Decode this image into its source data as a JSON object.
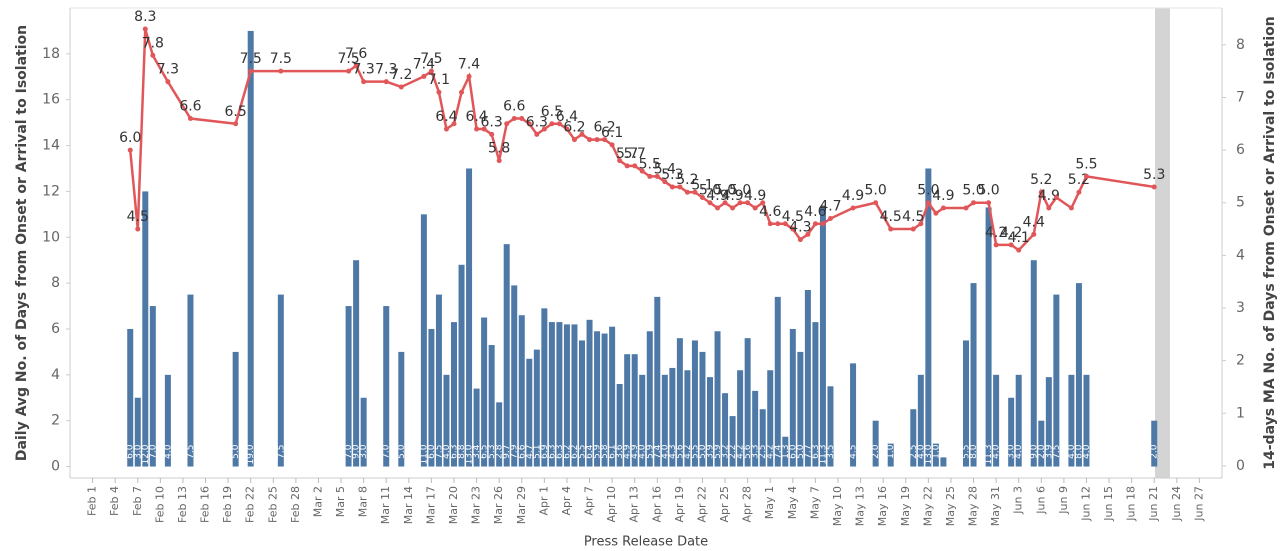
{
  "chart_data": {
    "type": "bar",
    "x_label": "Press Release Date",
    "y_label": "Daily Avg No. of Days from Onset or Arrival to Isolation",
    "y2_label": "14-days MA No. of Days from Onset or Arrival to Isolation",
    "x": [
      "Feb 6",
      "Feb 7",
      "Feb 8",
      "Feb 9",
      "Feb 11",
      "Feb 14",
      "Feb 20",
      "Feb 22",
      "Feb 26",
      "Mar 6",
      "Mar 7",
      "Mar 8",
      "Mar 11",
      "Mar 13",
      "Mar 16",
      "Mar 17",
      "Mar 18",
      "Mar 19",
      "Mar 20",
      "Mar 21",
      "Mar 22",
      "Mar 23",
      "Mar 24",
      "Mar 25",
      "Mar 26",
      "Mar 27",
      "Mar 28",
      "Mar 29",
      "Mar 30",
      "Mar 31",
      "Apr 1",
      "Apr 2",
      "Apr 3",
      "Apr 4",
      "Apr 5",
      "Apr 6",
      "Apr 7",
      "Apr 8",
      "Apr 9",
      "Apr 10",
      "Apr 11",
      "Apr 12",
      "Apr 13",
      "Apr 14",
      "Apr 15",
      "Apr 16",
      "Apr 17",
      "Apr 18",
      "Apr 19",
      "Apr 20",
      "Apr 21",
      "Apr 22",
      "Apr 23",
      "Apr 24",
      "Apr 25",
      "Apr 26",
      "Apr 27",
      "Apr 28",
      "Apr 29",
      "Apr 30",
      "May 1",
      "May 2",
      "May 3",
      "May 4",
      "May 5",
      "May 6",
      "May 7",
      "May 8",
      "May 9",
      "May 12",
      "May 15",
      "May 17",
      "May 20",
      "May 21",
      "May 22",
      "May 23",
      "May 24",
      "May 27",
      "May 28",
      "May 30",
      "May 31",
      "Jun 2",
      "Jun 3",
      "Jun 5",
      "Jun 6",
      "Jun 7",
      "Jun 8",
      "Jun 10",
      "Jun 11",
      "Jun 12",
      "Jun 21"
    ],
    "series": [
      {
        "name": "Daily Avg",
        "type": "bar",
        "color": "#4e79a7",
        "values": [
          6.0,
          3.0,
          12.0,
          7.0,
          4.0,
          7.5,
          5.0,
          19.0,
          7.5,
          7.0,
          9.0,
          3.0,
          7.0,
          5.0,
          11.0,
          6.0,
          7.5,
          4.0,
          6.3,
          8.8,
          13.0,
          3.4,
          6.5,
          5.3,
          2.8,
          9.7,
          7.9,
          6.6,
          4.7,
          5.1,
          6.9,
          6.3,
          6.3,
          6.2,
          6.2,
          5.5,
          6.4,
          5.9,
          5.8,
          6.1,
          3.6,
          4.9,
          4.9,
          4.0,
          5.9,
          7.4,
          4.0,
          4.3,
          5.6,
          4.2,
          5.5,
          5.0,
          3.9,
          5.9,
          3.2,
          2.2,
          4.2,
          5.6,
          3.3,
          2.5,
          4.2,
          7.4,
          1.3,
          6.0,
          5.0,
          7.7,
          6.3,
          11.3,
          3.5,
          4.5,
          2.0,
          1.0,
          2.5,
          4.0,
          13.0,
          1.0,
          0.4,
          5.5,
          8.0,
          11.3,
          4.0,
          3.0,
          4.0,
          9.0,
          2.0,
          3.9,
          7.5,
          4.0,
          8.0,
          4.0,
          2.0
        ],
        "value_labels": [
          "6.0",
          "3.0",
          "12.0",
          "7.0",
          "4.0",
          "7.5",
          "5.0",
          "19.0",
          "7.5",
          "7.0",
          "9.0",
          "3.0",
          "7.0",
          "5.0",
          "11.0",
          "6.0",
          "7.5",
          "4.0",
          "6.3",
          "8.8",
          "13.0",
          "3.4",
          "6.5",
          "5.3",
          "2.8",
          "9.7",
          "7.9",
          "6.6",
          "4.7",
          "5.1",
          "6.9",
          "6.3",
          "6.3",
          "6.2",
          "6.2",
          "5.5",
          "6.4",
          "5.9",
          "5.8",
          "6.1",
          "3.6",
          "4.9",
          "4.9",
          "4.0",
          "5.9",
          "7.4",
          "4.0",
          "4.3",
          "5.6",
          "4.2",
          "5.5",
          "5.0",
          "3.9",
          "5.9",
          "3.2",
          "2.2",
          "4.2",
          "5.6",
          "3.3",
          "2.5",
          "4.2",
          "7.4",
          "1.3",
          "6.0",
          "5.0",
          "7.7",
          "6.3",
          "11.3",
          "3.5",
          "4.5",
          "2.0",
          "1.0",
          "2.5",
          "4.0",
          "13.0",
          "1.0",
          "0.4",
          "5.5",
          "8.0",
          "11.3",
          "4.0",
          "3.0",
          "4.0",
          "9.0",
          "2.0",
          "3.9",
          "7.5",
          "4.0",
          "8.0",
          "4.0",
          "2.0"
        ]
      },
      {
        "name": "14-days MA",
        "type": "line",
        "axis": "y2",
        "color": "#e15759",
        "values": [
          6.0,
          4.5,
          8.3,
          7.8,
          7.3,
          6.6,
          6.5,
          7.5,
          7.5,
          7.5,
          7.6,
          7.3,
          7.3,
          7.2,
          7.4,
          7.5,
          7.1,
          6.4,
          6.5,
          7.1,
          7.4,
          6.4,
          6.4,
          6.3,
          5.8,
          6.5,
          6.6,
          6.6,
          6.5,
          6.3,
          6.4,
          6.5,
          6.5,
          6.4,
          6.2,
          6.3,
          6.2,
          6.2,
          6.2,
          6.1,
          5.8,
          5.7,
          5.7,
          5.6,
          5.5,
          5.5,
          5.4,
          5.3,
          5.3,
          5.2,
          5.2,
          5.1,
          5.0,
          4.9,
          5.0,
          4.9,
          5.0,
          5.0,
          4.9,
          5.0,
          4.6,
          4.6,
          4.6,
          4.5,
          4.3,
          4.4,
          4.6,
          4.6,
          4.7,
          4.9,
          5.0,
          4.5,
          4.5,
          4.6,
          5.0,
          4.8,
          4.9,
          4.9,
          5.0,
          5.0,
          4.2,
          4.2,
          4.1,
          4.4,
          5.2,
          4.9,
          5.1,
          4.9,
          5.2,
          5.5,
          5.3
        ],
        "value_labels": [
          "6.0",
          "4.5",
          "8.3",
          "7.8",
          "7.3",
          "6.6",
          "6.5",
          "7.5",
          "7.5",
          "7.5",
          "7.6",
          "7.3",
          "7.3",
          "7.2",
          "7.4",
          "7.5",
          "7.1",
          "6.4",
          null,
          null,
          "7.4",
          "6.4",
          null,
          "6.3",
          "5.8",
          null,
          "6.6",
          null,
          null,
          "6.3",
          null,
          "6.5",
          null,
          "6.4",
          "6.2",
          null,
          null,
          null,
          "6.2",
          "6.1",
          null,
          "5.7",
          "5.7",
          null,
          "5.5",
          null,
          "5.4",
          "5.3",
          null,
          "5.2",
          null,
          "5.1",
          "5.0",
          "4.9",
          "5.0",
          "4.9",
          "5.0",
          null,
          "4.9",
          null,
          "4.6",
          null,
          null,
          "4.5",
          "4.3",
          null,
          "4.6",
          null,
          "4.7",
          "4.9",
          "5.0",
          "4.5",
          "4.5",
          null,
          "5.0",
          null,
          "4.9",
          null,
          "5.0",
          "5.0",
          "4.2",
          "4.2",
          "4.1",
          "4.4",
          "5.2",
          "4.9",
          null,
          null,
          "5.2",
          "5.5",
          "5.3"
        ]
      }
    ],
    "xlim": [
      "Jan 29",
      "Jun 30"
    ],
    "xticks": [
      "Feb 1",
      "Feb 4",
      "Feb 7",
      "Feb 10",
      "Feb 13",
      "Feb 16",
      "Feb 19",
      "Feb 22",
      "Feb 25",
      "Feb 28",
      "Mar 2",
      "Mar 5",
      "Mar 8",
      "Mar 11",
      "Mar 14",
      "Mar 17",
      "Mar 20",
      "Mar 23",
      "Mar 26",
      "Mar 29",
      "Apr 1",
      "Apr 4",
      "Apr 7",
      "Apr 10",
      "Apr 13",
      "Apr 16",
      "Apr 19",
      "Apr 22",
      "Apr 25",
      "Apr 28",
      "May 1",
      "May 4",
      "May 7",
      "May 10",
      "May 13",
      "May 16",
      "May 19",
      "May 22",
      "May 25",
      "May 28",
      "May 31",
      "Jun 3",
      "Jun 6",
      "Jun 9",
      "Jun 12",
      "Jun 15",
      "Jun 18",
      "Jun 21",
      "Jun 24",
      "Jun 27"
    ],
    "ylim": [
      -0.5,
      20
    ],
    "yticks": [
      0,
      2,
      4,
      6,
      8,
      10,
      12,
      14,
      16,
      18
    ],
    "y2lim": [
      -0.23,
      8.7
    ],
    "y2ticks": [
      0,
      1,
      2,
      3,
      4,
      5,
      6,
      7,
      8
    ]
  }
}
